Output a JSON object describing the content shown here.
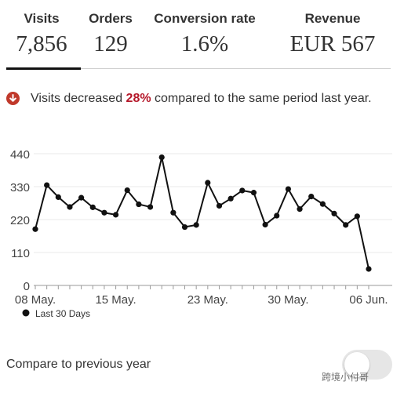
{
  "metrics": [
    {
      "label": "Visits",
      "value": "7,856"
    },
    {
      "label": "Orders",
      "value": "129"
    },
    {
      "label": "Conversion rate",
      "value": "1.6%"
    },
    {
      "label": "Revenue",
      "value": "EUR 567"
    }
  ],
  "notice": {
    "icon": "arrow-down-circle-icon",
    "prefix": "Visits decreased ",
    "percent": "28%",
    "suffix": " compared to the same period last year.",
    "icon_color": "#c0392b",
    "percent_color": "#b5182a"
  },
  "chart_data": {
    "type": "line",
    "title": "",
    "xlabel": "",
    "ylabel": "",
    "ylim": [
      0,
      440
    ],
    "y_ticks": [
      "0",
      "110",
      "220",
      "330",
      "440"
    ],
    "x_tick_labels": [
      {
        "index": 0,
        "label": "08 May."
      },
      {
        "index": 7,
        "label": "15 May."
      },
      {
        "index": 15,
        "label": "23 May."
      },
      {
        "index": 22,
        "label": "30 May."
      },
      {
        "index": 29,
        "label": "06 Jun."
      }
    ],
    "grid": true,
    "legend": "bottom-left",
    "series": [
      {
        "name": "Last 30 Days",
        "color": "#111111",
        "values": [
          188,
          335,
          295,
          262,
          293,
          261,
          243,
          236,
          318,
          271,
          262,
          428,
          243,
          195,
          202,
          343,
          266,
          290,
          317,
          310,
          203,
          233,
          322,
          255,
          297,
          272,
          240,
          202,
          231,
          55
        ]
      }
    ]
  },
  "compare": {
    "label": "Compare to previous year",
    "enabled": false
  },
  "watermark": {
    "text": "跨境小付哥"
  }
}
